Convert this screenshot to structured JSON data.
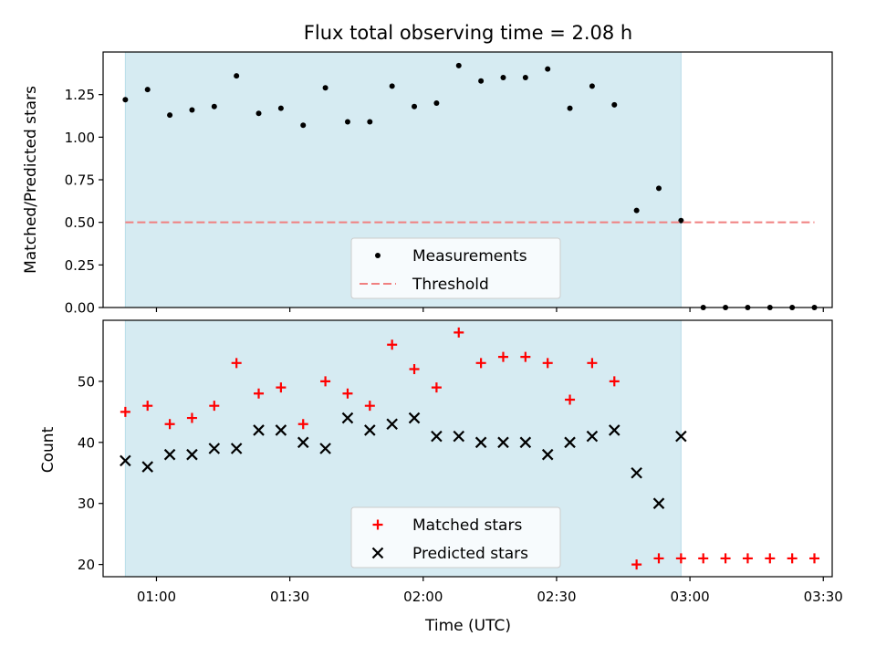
{
  "colors": {
    "background": "#ffffff",
    "shade": "#add8e6",
    "measurement": "#000000",
    "threshold": "#f08080",
    "matched": "#ff0000",
    "predicted": "#000000"
  },
  "chart_data": [
    {
      "type": "scatter",
      "title": "Flux total observing time = 2.08 h",
      "xlabel": "",
      "ylabel": "Matched/Predicted stars",
      "xlim": [
        "00:48",
        "03:32"
      ],
      "ylim": [
        0,
        1.5
      ],
      "x_ticks": [
        "01:00",
        "01:30",
        "02:00",
        "02:30",
        "03:00",
        "03:30"
      ],
      "x_tick_labels_visible": false,
      "y_ticks": [
        "0.00",
        "0.25",
        "0.50",
        "0.75",
        "1.00",
        "1.25"
      ],
      "shaded_interval": [
        "00:53",
        "02:58"
      ],
      "legend": {
        "position": "lower center",
        "entries": [
          "Measurements",
          "Threshold"
        ]
      },
      "series": [
        {
          "name": "Measurements",
          "marker": "dot",
          "x": [
            "00:53",
            "00:58",
            "01:03",
            "01:08",
            "01:13",
            "01:18",
            "01:23",
            "01:28",
            "01:33",
            "01:38",
            "01:43",
            "01:48",
            "01:53",
            "01:58",
            "02:03",
            "02:08",
            "02:13",
            "02:18",
            "02:23",
            "02:28",
            "02:33",
            "02:38",
            "02:43",
            "02:48",
            "02:53",
            "02:58",
            "03:03",
            "03:08",
            "03:13",
            "03:18",
            "03:23",
            "03:28"
          ],
          "values": [
            1.22,
            1.28,
            1.13,
            1.16,
            1.18,
            1.36,
            1.14,
            1.17,
            1.07,
            1.29,
            1.09,
            1.09,
            1.3,
            1.18,
            1.2,
            1.42,
            1.33,
            1.35,
            1.35,
            1.4,
            1.17,
            1.3,
            1.19,
            0.57,
            0.7,
            0.51,
            0,
            0,
            0,
            0,
            0,
            0
          ]
        },
        {
          "name": "Threshold",
          "style": "dashed",
          "x": [
            "00:53",
            "03:28"
          ],
          "values": [
            0.5,
            0.5
          ]
        }
      ]
    },
    {
      "type": "scatter",
      "title": "",
      "xlabel": "Time (UTC)",
      "ylabel": "Count",
      "xlim": [
        "00:48",
        "03:32"
      ],
      "ylim": [
        18,
        60
      ],
      "x_ticks": [
        "01:00",
        "01:30",
        "02:00",
        "02:30",
        "03:00",
        "03:30"
      ],
      "x_tick_labels_visible": true,
      "y_ticks": [
        "20",
        "30",
        "40",
        "50"
      ],
      "shaded_interval": [
        "00:53",
        "02:58"
      ],
      "legend": {
        "position": "lower center",
        "entries": [
          "Matched stars",
          "Predicted stars"
        ]
      },
      "series": [
        {
          "name": "Matched stars",
          "marker": "+",
          "x": [
            "00:53",
            "00:58",
            "01:03",
            "01:08",
            "01:13",
            "01:18",
            "01:23",
            "01:28",
            "01:33",
            "01:38",
            "01:43",
            "01:48",
            "01:53",
            "01:58",
            "02:03",
            "02:08",
            "02:13",
            "02:18",
            "02:23",
            "02:28",
            "02:33",
            "02:38",
            "02:43",
            "02:48",
            "02:53",
            "02:58",
            "03:03",
            "03:08",
            "03:13",
            "03:18",
            "03:23",
            "03:28"
          ],
          "values": [
            45,
            46,
            43,
            44,
            46,
            53,
            48,
            49,
            43,
            50,
            48,
            46,
            56,
            52,
            49,
            58,
            53,
            54,
            54,
            53,
            47,
            53,
            50,
            20,
            21,
            21,
            21,
            21,
            21,
            21,
            21,
            21
          ]
        },
        {
          "name": "Predicted stars",
          "marker": "x",
          "x": [
            "00:53",
            "00:58",
            "01:03",
            "01:08",
            "01:13",
            "01:18",
            "01:23",
            "01:28",
            "01:33",
            "01:38",
            "01:43",
            "01:48",
            "01:53",
            "01:58",
            "02:03",
            "02:08",
            "02:13",
            "02:18",
            "02:23",
            "02:28",
            "02:33",
            "02:38",
            "02:43",
            "02:48",
            "02:53",
            "02:58"
          ],
          "values": [
            37,
            36,
            38,
            38,
            39,
            39,
            42,
            42,
            40,
            39,
            44,
            42,
            43,
            44,
            41,
            41,
            40,
            40,
            40,
            38,
            40,
            41,
            42,
            35,
            30,
            41
          ]
        }
      ]
    }
  ]
}
